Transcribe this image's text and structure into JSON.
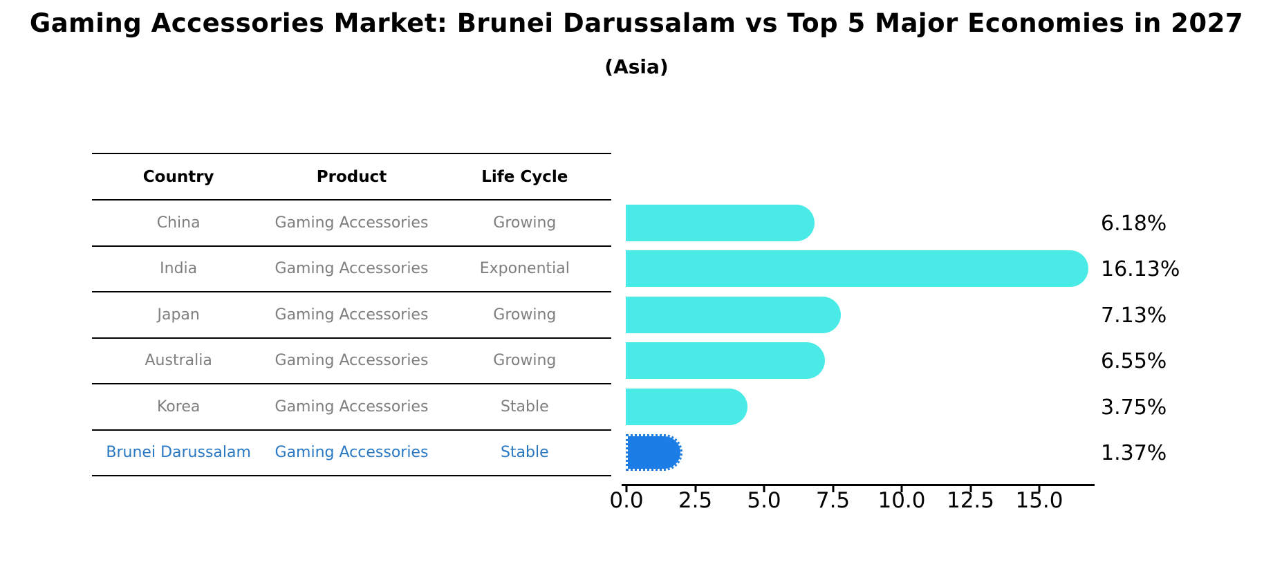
{
  "title": "Gaming Accessories Market: Brunei Darussalam vs Top 5 Major Economies in 2027",
  "subtitle": "(Asia)",
  "table": {
    "headers": [
      "Country",
      "Product",
      "Life Cycle"
    ],
    "rows": [
      {
        "country": "China",
        "product": "Gaming Accessories",
        "life_cycle": "Growing",
        "share_label": "6.18%",
        "highlight": false
      },
      {
        "country": "India",
        "product": "Gaming Accessories",
        "life_cycle": "Exponential",
        "share_label": "16.13%",
        "highlight": false
      },
      {
        "country": "Japan",
        "product": "Gaming Accessories",
        "life_cycle": "Growing",
        "share_label": "7.13%",
        "highlight": false
      },
      {
        "country": "Australia",
        "product": "Gaming Accessories",
        "life_cycle": "Growing",
        "share_label": "6.55%",
        "highlight": false
      },
      {
        "country": "Korea",
        "product": "Gaming Accessories",
        "life_cycle": "Stable",
        "share_label": "3.75%",
        "highlight": false
      },
      {
        "country": "Brunei Darussalam",
        "product": "Gaming Accessories",
        "life_cycle": "Stable",
        "share_label": "1.37%",
        "highlight": true
      }
    ]
  },
  "chart_data": {
    "type": "bar",
    "orientation": "horizontal",
    "title": "Gaming Accessories Market: Brunei Darussalam vs Top 5 Major Economies in 2027 (Asia)",
    "categories": [
      "China",
      "India",
      "Japan",
      "Australia",
      "Korea",
      "Brunei Darussalam"
    ],
    "values": [
      6.18,
      16.13,
      7.13,
      6.55,
      3.75,
      1.37
    ],
    "value_labels": [
      "6.18%",
      "16.13%",
      "7.13%",
      "6.55%",
      "3.75%",
      "1.37%"
    ],
    "highlighted_category": "Brunei Darussalam",
    "xlim": [
      0,
      17
    ],
    "xticks": [
      0,
      2.5,
      5,
      7.5,
      10,
      12.5,
      15
    ],
    "xtick_labels": [
      "0.0",
      "2.5",
      "5.0",
      "7.5",
      "10.0",
      "12.5",
      "15.0"
    ],
    "grid": false,
    "legend": false,
    "colors": {
      "bar_default": "#4aebe6",
      "bar_highlight": "#1c7de6",
      "highlight_text": "#2878c4",
      "table_text": "#7e7e7e",
      "axis": "#000000"
    }
  }
}
